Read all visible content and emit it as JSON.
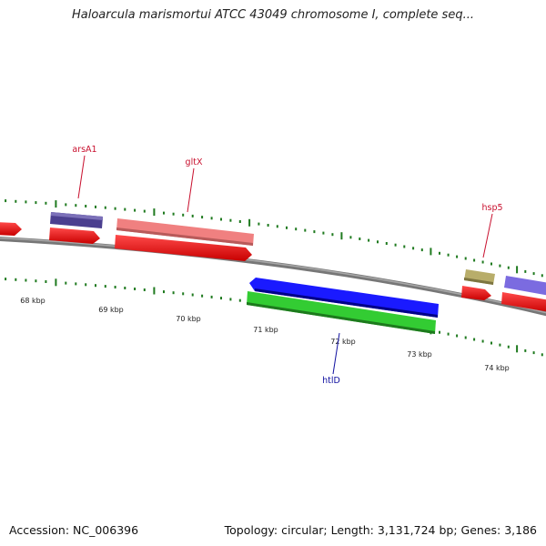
{
  "title": "Haloarcula marismortui ATCC 43049 chromosome I, complete seq...",
  "footer": {
    "accession": "Accession: NC_006396",
    "summary": "Topology: circular; Length: 3,131,724 bp; Genes: 3,186"
  },
  "colors": {
    "backbone": "#7a7a7a",
    "ticks": "#1f7a1f",
    "forward_label": "#c8102e",
    "reverse_label": "#1010a0"
  },
  "scale": {
    "labels": [
      "68 kbp",
      "69 kbp",
      "70 kbp",
      "71 kbp",
      "72 kbp",
      "73 kbp",
      "74 kbp"
    ]
  },
  "genes": [
    {
      "name": "arsA1",
      "strand": "+",
      "color": "#4b3f8f"
    },
    {
      "name": "gltX",
      "strand": "+",
      "color": "#f08080"
    },
    {
      "name": "hsp5",
      "strand": "+",
      "color": "#b8ad6a"
    },
    {
      "name": "htlD",
      "strand": "-",
      "color": "#1a1aff"
    },
    {
      "name": "",
      "strand": "-",
      "color": "#33cc33"
    },
    {
      "name": "",
      "strand": "+",
      "color": "#7b6be0"
    }
  ]
}
